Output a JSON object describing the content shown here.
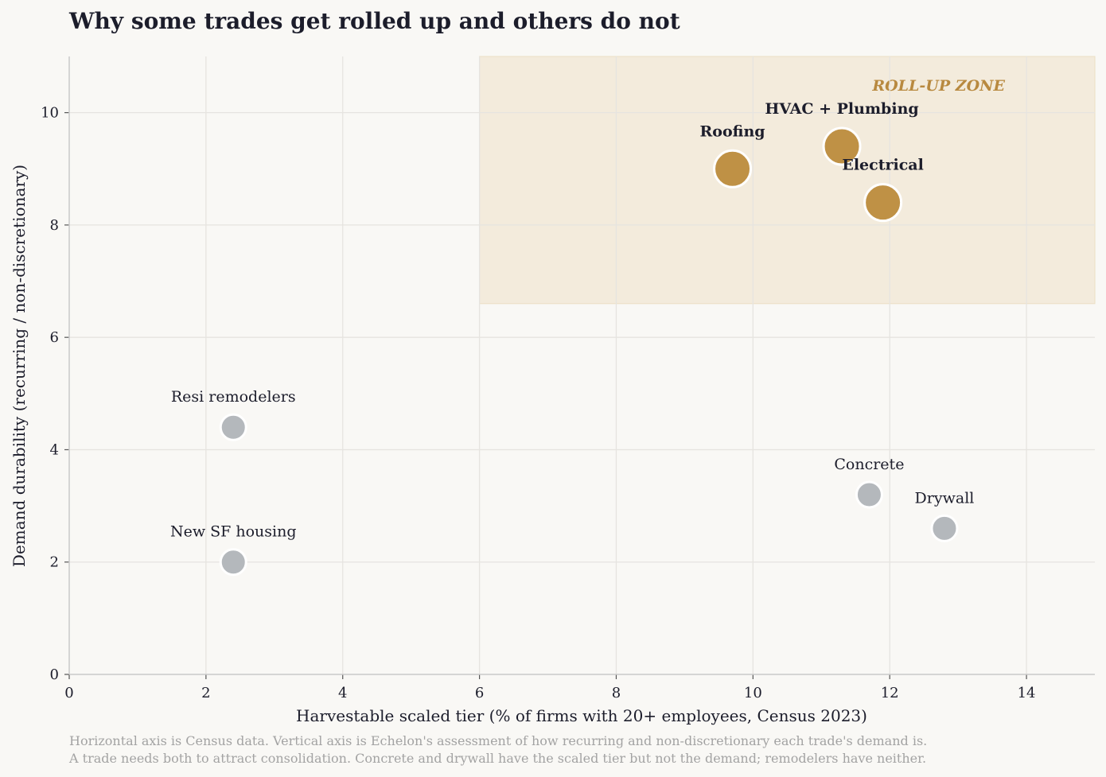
{
  "title": "Why some trades get rolled up and others do not",
  "footnote": {
    "line1": "Horizontal axis is Census data. Vertical axis is Echelon's assessment of how recurring and non-discretionary each trade's demand is.",
    "line2": "A trade needs both to attract consolidation. Concrete and drywall have the scaled tier but not the demand; remodelers have neither."
  },
  "colors": {
    "highlight": "#bf9145",
    "muted": "#b4b8bc",
    "zone_fill": "#f3ebdc",
    "zone_text": "#b8893f",
    "grid": "#e6e4e0",
    "background": "#f9f8f5"
  },
  "chart_data": {
    "type": "scatter",
    "title": "Why some trades get rolled up and others do not",
    "xlabel": "Harvestable scaled tier  (% of firms with 20+ employees, Census 2023)",
    "ylabel": "Demand durability  (recurring / non-discretionary)",
    "xlim": [
      0,
      15
    ],
    "ylim": [
      0,
      11
    ],
    "xticks": [
      0,
      2,
      4,
      6,
      8,
      10,
      12,
      14
    ],
    "yticks": [
      0,
      2,
      4,
      6,
      8,
      10
    ],
    "grid": true,
    "zone": {
      "label": "ROLL-UP ZONE",
      "x": [
        6,
        15
      ],
      "y": [
        6.6,
        11
      ]
    },
    "points": [
      {
        "label": "HVAC + Plumbing",
        "x": 11.3,
        "y": 9.4,
        "highlight": true
      },
      {
        "label": "Roofing",
        "x": 9.7,
        "y": 9.0,
        "highlight": true
      },
      {
        "label": "Electrical",
        "x": 11.9,
        "y": 8.4,
        "highlight": true
      },
      {
        "label": "Resi remodelers",
        "x": 2.4,
        "y": 4.4,
        "highlight": false
      },
      {
        "label": "New SF housing",
        "x": 2.4,
        "y": 2.0,
        "highlight": false
      },
      {
        "label": "Concrete",
        "x": 11.7,
        "y": 3.2,
        "highlight": false
      },
      {
        "label": "Drywall",
        "x": 12.8,
        "y": 2.6,
        "highlight": false
      }
    ]
  }
}
